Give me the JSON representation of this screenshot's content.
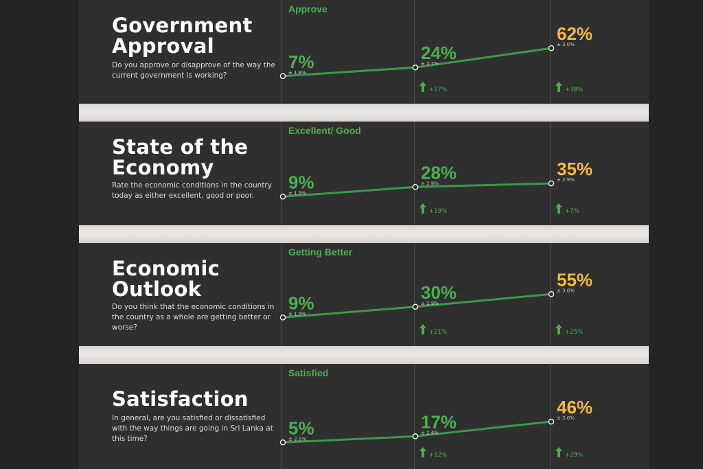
{
  "colors": {
    "background": "#242424",
    "panel": "#2f2f2f",
    "line": "#3a9b4a",
    "value_green": "#4caf50",
    "value_highlight": "#f5b942",
    "separator": "#e6e2e0"
  },
  "chart_data": [
    {
      "type": "line",
      "title": "Government Approval",
      "description": "Do you approve or disapprove of the way the current government is working?",
      "series": [
        {
          "name": "Approve",
          "values": [
            7,
            24,
            62
          ]
        }
      ],
      "labels": [
        "7%",
        "24%",
        "62%"
      ],
      "margins": [
        "± 1.8%",
        "± 2.7%",
        "± 3.0%"
      ],
      "changes": [
        "",
        "+17%",
        "+38%"
      ]
    },
    {
      "type": "line",
      "title": "State of the Economy",
      "description": "Rate the economic conditions in the country today as either excellent, good or poor.",
      "series": [
        {
          "name": "Excellent/ Good",
          "values": [
            9,
            28,
            35
          ]
        }
      ],
      "labels": [
        "9%",
        "28%",
        "35%"
      ],
      "margins": [
        "± 1.9%",
        "± 2.9%",
        "± 2.9%"
      ],
      "changes": [
        "",
        "+19%",
        "+7%"
      ]
    },
    {
      "type": "line",
      "title": "Economic Outlook",
      "description": "Do you think that the economic conditions in the country as a whole are getting better or worse?",
      "series": [
        {
          "name": "Getting Better",
          "values": [
            9,
            30,
            55
          ]
        }
      ],
      "labels": [
        "9%",
        "30%",
        "55%"
      ],
      "margins": [
        "± 1.9%",
        "± 2.9%",
        "± 3.0%"
      ],
      "changes": [
        "",
        "+21%",
        "+25%"
      ]
    },
    {
      "type": "line",
      "title": "Satisfaction",
      "description": "In general, are you satisfied or dissatisfied with the way things are going in Sri Lanka at this time?",
      "series": [
        {
          "name": "Satisfied",
          "values": [
            5,
            17,
            46
          ]
        }
      ],
      "labels": [
        "5%",
        "17%",
        "46%"
      ],
      "margins": [
        "± 2.1%",
        "± 2.4%",
        "± 3.0%"
      ],
      "changes": [
        "",
        "+12%",
        "+29%"
      ]
    }
  ]
}
